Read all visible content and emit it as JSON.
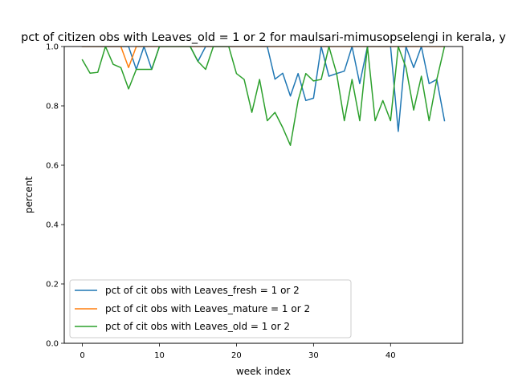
{
  "chart_data": {
    "type": "line",
    "title": "pct of citizen obs with Leaves_old = 1 or 2 for maulsari-mimusopselengi in kerala, y",
    "xlabel": "week index",
    "ylabel": "percent",
    "xlim": [
      -2.35,
      49.35
    ],
    "ylim": [
      0.0,
      1.0
    ],
    "xticks": [
      0,
      10,
      20,
      30,
      40
    ],
    "yticks": [
      0.0,
      0.2,
      0.4,
      0.6,
      0.8,
      1.0
    ],
    "xtick_labels": [
      "0",
      "10",
      "20",
      "30",
      "40"
    ],
    "ytick_labels": [
      "0.0",
      "0.2",
      "0.4",
      "0.6",
      "0.8",
      "1.0"
    ],
    "legend_position": "lower-left",
    "grid": false,
    "x": [
      0,
      1,
      2,
      3,
      4,
      5,
      6,
      7,
      8,
      9,
      10,
      11,
      12,
      13,
      14,
      15,
      16,
      17,
      18,
      19,
      20,
      21,
      22,
      23,
      24,
      25,
      26,
      27,
      28,
      29,
      30,
      31,
      32,
      33,
      34,
      35,
      36,
      37,
      38,
      39,
      40,
      41,
      42,
      43,
      44,
      45,
      46,
      47
    ],
    "series": [
      {
        "name": "pct of cit obs with Leaves_fresh = 1 or 2",
        "color": "#1f77b4",
        "values": [
          1.0,
          1.0,
          1.0,
          1.0,
          1.0,
          1.0,
          1.0,
          0.923,
          1.0,
          0.923,
          1.0,
          1.0,
          1.0,
          1.0,
          1.0,
          0.95,
          1.0,
          1.0,
          1.0,
          1.0,
          1.0,
          1.0,
          1.0,
          1.0,
          1.0,
          0.89,
          0.91,
          0.833,
          0.909,
          0.818,
          0.826,
          1.0,
          0.9,
          0.909,
          0.917,
          1.0,
          0.875,
          1.0,
          1.0,
          1.0,
          1.0,
          0.714,
          1.0,
          0.929,
          1.0,
          0.875,
          0.889,
          0.75
        ]
      },
      {
        "name": "pct of cit obs with Leaves_mature = 1 or 2",
        "color": "#ff7f0e",
        "values": [
          1.0,
          1.0,
          1.0,
          1.0,
          1.0,
          1.0,
          0.929,
          1.0,
          1.0,
          1.0,
          1.0,
          1.0,
          1.0,
          1.0,
          1.0,
          1.0,
          1.0,
          1.0,
          1.0,
          1.0,
          1.0,
          1.0,
          1.0,
          1.0,
          1.0,
          1.0,
          1.0,
          1.0,
          1.0,
          1.0,
          1.0,
          1.0,
          1.0,
          1.0,
          1.0,
          1.0,
          1.0,
          1.0,
          1.0,
          1.0,
          1.0,
          1.0,
          1.0,
          1.0,
          1.0,
          1.0,
          1.0,
          1.0
        ]
      },
      {
        "name": "pct of cit obs with Leaves_old = 1 or 2",
        "color": "#2ca02c",
        "values": [
          0.955,
          0.91,
          0.913,
          1.0,
          0.94,
          0.929,
          0.857,
          0.923,
          0.923,
          0.923,
          1.0,
          1.0,
          1.0,
          1.0,
          1.0,
          0.95,
          0.923,
          1.0,
          1.0,
          1.0,
          0.909,
          0.889,
          0.778,
          0.889,
          0.75,
          0.778,
          0.727,
          0.667,
          0.818,
          0.909,
          0.884,
          0.889,
          1.0,
          0.909,
          0.75,
          0.889,
          0.75,
          1.0,
          0.75,
          0.818,
          0.75,
          1.0,
          0.929,
          0.786,
          0.9,
          0.75,
          0.889,
          1.0
        ]
      }
    ]
  }
}
